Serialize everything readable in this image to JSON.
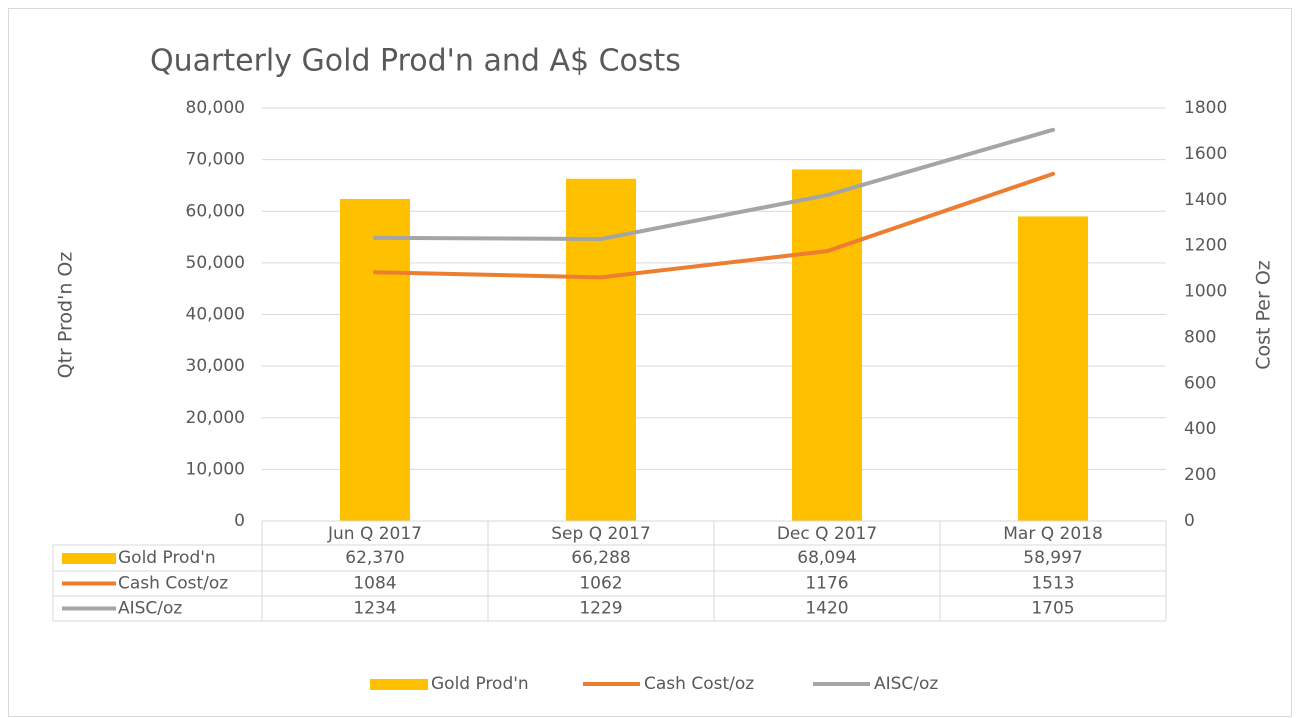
{
  "chart_data": {
    "type": "combo",
    "title": "Quarterly Gold Prod'n and A$ Costs",
    "y_label": "Qtr Prod'n Oz",
    "y2_label": "Cost Per Oz",
    "categories": [
      "Jun Q 2017",
      "Sep Q 2017",
      "Dec Q 2017",
      "Mar Q 2018"
    ],
    "series": [
      {
        "name": "Gold Prod'n",
        "type": "bar",
        "color": "#FFC000",
        "values": [
          62370,
          66288,
          68094,
          58997
        ],
        "value_labels": [
          "62,370",
          "66,288",
          "68,094",
          "58,997"
        ]
      },
      {
        "name": "Cash Cost/oz",
        "type": "line",
        "axis": "y2",
        "color": "#ED7D31",
        "values": [
          1084,
          1062,
          1176,
          1513
        ]
      },
      {
        "name": "AISC/oz",
        "type": "line",
        "axis": "y2",
        "color": "#A5A5A5",
        "values": [
          1234,
          1229,
          1420,
          1705
        ]
      }
    ],
    "ylim": [
      0,
      80000
    ],
    "yticks": [
      0,
      {
        "value": 10000,
        "label": "10,000"
      },
      {
        "value": 20000,
        "label": "20,000"
      },
      {
        "value": 30000,
        "label": "30,000"
      },
      {
        "value": 40000,
        "label": "40,000"
      },
      {
        "value": 50000,
        "label": "50,000"
      },
      {
        "value": 60000,
        "label": "60,000"
      },
      {
        "value": 70000,
        "label": "70,000"
      },
      {
        "value": 80000,
        "label": "80,000"
      }
    ],
    "y2lim": [
      0,
      1800
    ],
    "y2ticks": [
      0,
      200,
      400,
      600,
      800,
      1000,
      1200,
      1400,
      1600,
      1800
    ],
    "grid": true,
    "data_table": true,
    "legend": "bottom"
  }
}
